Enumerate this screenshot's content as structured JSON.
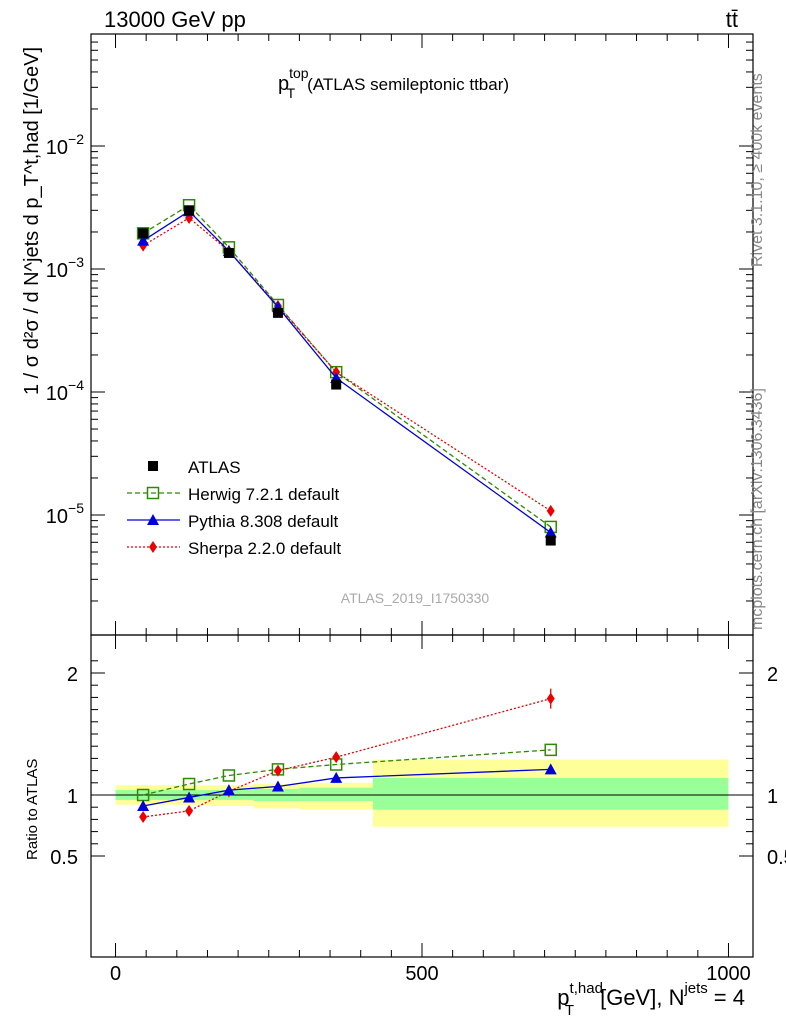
{
  "header": {
    "energy_label": "13000 GeV pp",
    "process_label": "tt̄"
  },
  "side_labels": {
    "rivet": "Rivet 3.1.10, ≥ 400k events",
    "mcplots": "mcplots.cern.ch [arXiv:1306.3436]"
  },
  "watermark": "ATLAS_2019_I1750330",
  "colors": {
    "atlas": "#000000",
    "herwig": "#2e8b00",
    "pythia": "#0000dd",
    "sherpa": "#ee0000",
    "band_inner": "#99ff99",
    "band_outer": "#ffff99"
  },
  "chart_data": [
    {
      "type": "line",
      "scale": "log",
      "title_main": "p",
      "title_sup": "top",
      "title_sub": "T",
      "title_suffix": "(ATLAS semileptonic ttbar)",
      "ylabel": "1 / σ d²σ / d N^jets d p_T^t,had [1/GeV]",
      "ylim": [
        1.5e-06,
        0.1
      ],
      "y_ticks": [
        {
          "value": 1e-05,
          "label_base": "10",
          "label_exp": "−5"
        },
        {
          "value": 0.0001,
          "label_base": "10",
          "label_exp": "−4"
        },
        {
          "value": 0.001,
          "label_base": "10",
          "label_exp": "−3"
        },
        {
          "value": 0.01,
          "label_base": "10",
          "label_exp": "−2"
        }
      ],
      "x": [
        45,
        120,
        185,
        265,
        360,
        710
      ],
      "bin_edges": [
        0,
        80,
        150,
        225,
        300,
        420,
        1000
      ],
      "series": [
        {
          "name": "ATLAS",
          "key": "atlas",
          "values": [
            0.00195,
            0.003,
            0.00135,
            0.00044,
            0.000115,
            6.2e-06
          ]
        },
        {
          "name": "Herwig 7.2.1 default",
          "key": "herwig",
          "values": [
            0.00195,
            0.0033,
            0.0015,
            0.00051,
            0.000145,
            8e-06
          ]
        },
        {
          "name": "Pythia 8.308 default",
          "key": "pythia",
          "values": [
            0.0017,
            0.00295,
            0.0014,
            0.00049,
            0.00013,
            7.2e-06
          ]
        },
        {
          "name": "Sherpa 2.2.0 default",
          "key": "sherpa",
          "values": [
            0.00155,
            0.0026,
            0.0014,
            0.0005,
            0.000145,
            1.08e-05
          ]
        }
      ]
    },
    {
      "type": "line",
      "ylabel": "Ratio to ATLAS",
      "ylim": [
        0.4,
        2.3
      ],
      "xlim": [
        -40,
        1040
      ],
      "y_ticks": [
        {
          "value": 0.5,
          "label": "0.5"
        },
        {
          "value": 1,
          "label": "1"
        },
        {
          "value": 2,
          "label": "2"
        }
      ],
      "x_ticks": [
        {
          "value": 0,
          "label": "0"
        },
        {
          "value": 500,
          "label": "500"
        },
        {
          "value": 1000,
          "label": "1000"
        }
      ],
      "xlabel_main": "p",
      "xlabel_sup": "t,had",
      "xlabel_sub": "T",
      "xlabel_suffix": "[GeV], N",
      "xlabel_sup2": "jets",
      "xlabel_end": "= 4",
      "x": [
        45,
        120,
        185,
        265,
        360,
        710
      ],
      "band_bins": [
        {
          "lo": 0,
          "hi": 80,
          "inner": [
            0.96,
            1.04
          ],
          "outer": [
            0.92,
            1.08
          ]
        },
        {
          "lo": 80,
          "hi": 150,
          "inner": [
            0.96,
            1.04
          ],
          "outer": [
            0.92,
            1.08
          ]
        },
        {
          "lo": 150,
          "hi": 225,
          "inner": [
            0.96,
            1.04
          ],
          "outer": [
            0.91,
            1.08
          ]
        },
        {
          "lo": 225,
          "hi": 300,
          "inner": [
            0.95,
            1.05
          ],
          "outer": [
            0.89,
            1.09
          ]
        },
        {
          "lo": 300,
          "hi": 420,
          "inner": [
            0.95,
            1.06
          ],
          "outer": [
            0.88,
            1.1
          ]
        },
        {
          "lo": 420,
          "hi": 1000,
          "inner": [
            0.88,
            1.14
          ],
          "outer": [
            0.74,
            1.29
          ]
        }
      ],
      "series": [
        {
          "name": "Herwig 7.2.1 default",
          "key": "herwig",
          "values": [
            1.0,
            1.09,
            1.16,
            1.21,
            1.25,
            1.37
          ]
        },
        {
          "name": "Pythia 8.308 default",
          "key": "pythia",
          "values": [
            0.91,
            0.98,
            1.04,
            1.07,
            1.14,
            1.21
          ]
        },
        {
          "name": "Sherpa 2.2.0 default",
          "key": "sherpa",
          "values": [
            0.82,
            0.87,
            1.03,
            1.2,
            1.31,
            1.79
          ]
        }
      ]
    }
  ]
}
